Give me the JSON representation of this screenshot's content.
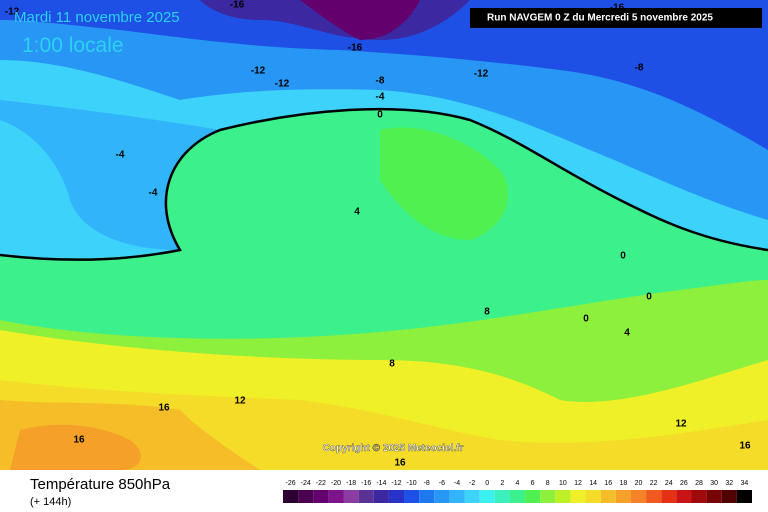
{
  "header": {
    "date": "Mardi 11 novembre 2025",
    "time": "1:00 locale",
    "run": "Run NAVGEM 0 Z du Mercredi 5 novembre 2025"
  },
  "map": {
    "contour_labels": [
      -12,
      -16,
      -16,
      -16,
      -12,
      -12,
      -8,
      -4,
      0,
      -12,
      -8,
      -4,
      -4,
      4,
      8,
      8,
      12,
      16,
      16,
      12,
      16,
      16,
      0,
      0,
      0,
      4
    ],
    "copyright": "Copyright © 2025 Meteociel.fr"
  },
  "footer": {
    "title": "Température 850hPa",
    "lead": "(+ 144h)"
  },
  "colorbar": {
    "ticks": [
      -26,
      -24,
      -22,
      -20,
      -18,
      -16,
      -14,
      -12,
      -10,
      -8,
      -6,
      -4,
      -2,
      0,
      2,
      4,
      6,
      8,
      10,
      12,
      14,
      16,
      18,
      20,
      22,
      24,
      26,
      28,
      30,
      32,
      34
    ],
    "colors": [
      "#2d0033",
      "#4b0050",
      "#64006e",
      "#7d148c",
      "#8c3ca0",
      "#5a3296",
      "#3c28a0",
      "#2832c8",
      "#1e50e6",
      "#1e78f0",
      "#2896f5",
      "#32b4fa",
      "#3cd2fa",
      "#3cf0f0",
      "#3cf0be",
      "#3cf08c",
      "#50f050",
      "#8cf03c",
      "#bef028",
      "#f0f028",
      "#f5dc28",
      "#f5be28",
      "#f5a028",
      "#f58228",
      "#f05a1e",
      "#e63214",
      "#c81414",
      "#a00a0a",
      "#780505",
      "#500000",
      "#000000"
    ]
  }
}
